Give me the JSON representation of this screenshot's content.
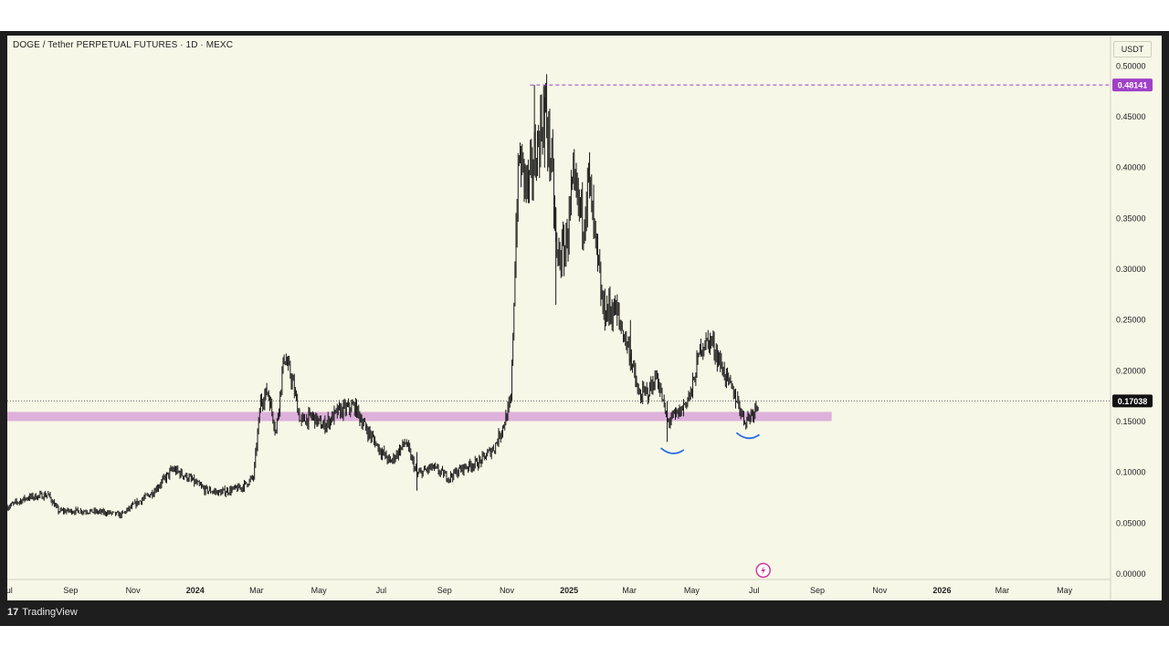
{
  "header": {
    "title": "DOGE / Tether PERPETUAL FUTURES · 1D · MEXC",
    "unit": "USDT"
  },
  "footer": {
    "logo_mark": "17",
    "brand": "TradingView"
  },
  "colors": {
    "background": "#f7f7e7",
    "candle": "#1a1a1a",
    "zone": "#d9a9d9",
    "high_marker": "#a040c8",
    "last_marker": "#111111",
    "curve_marks": "#2a6fe0",
    "lightning": "#d03a9a"
  },
  "icons": [
    "lightning-icon",
    "tradingview-logo"
  ],
  "chart_data": {
    "type": "candlestick",
    "title": "DOGE / Tether PERPETUAL FUTURES · 1D · MEXC",
    "x_range": [
      "2023-07-01",
      "2026-06-15"
    ],
    "y_range": [
      0,
      0.53
    ],
    "x_tick_labels": [
      {
        "label": "Jul",
        "date": "2023-07-01"
      },
      {
        "label": "Sep",
        "date": "2023-09-01"
      },
      {
        "label": "Nov",
        "date": "2023-11-01"
      },
      {
        "label": "2024",
        "date": "2024-01-01"
      },
      {
        "label": "Mar",
        "date": "2024-03-01"
      },
      {
        "label": "May",
        "date": "2024-05-01"
      },
      {
        "label": "Jul",
        "date": "2024-07-01"
      },
      {
        "label": "Sep",
        "date": "2024-09-01"
      },
      {
        "label": "Nov",
        "date": "2024-11-01"
      },
      {
        "label": "2025",
        "date": "2025-01-01"
      },
      {
        "label": "Mar",
        "date": "2025-03-01"
      },
      {
        "label": "May",
        "date": "2025-05-01"
      },
      {
        "label": "Jul",
        "date": "2025-07-01"
      },
      {
        "label": "Sep",
        "date": "2025-09-01"
      },
      {
        "label": "Nov",
        "date": "2025-11-01"
      },
      {
        "label": "2026",
        "date": "2026-01-01"
      },
      {
        "label": "Mar",
        "date": "2026-03-01"
      },
      {
        "label": "May",
        "date": "2026-05-01"
      }
    ],
    "y_tick_labels": [
      "0.00000",
      "0.05000",
      "0.10000",
      "0.15000",
      "0.20000",
      "0.25000",
      "0.30000",
      "0.35000",
      "0.40000",
      "0.45000",
      "0.50000"
    ],
    "y_tick_values": [
      0,
      0.05,
      0.1,
      0.15,
      0.2,
      0.25,
      0.3,
      0.35,
      0.4,
      0.45,
      0.5
    ],
    "price_path": [
      [
        "2023-07-01",
        0.066
      ],
      [
        "2023-07-20",
        0.075
      ],
      [
        "2023-08-10",
        0.078
      ],
      [
        "2023-08-20",
        0.062
      ],
      [
        "2023-09-15",
        0.062
      ],
      [
        "2023-10-10",
        0.06
      ],
      [
        "2023-10-20",
        0.058
      ],
      [
        "2023-11-05",
        0.07
      ],
      [
        "2023-11-20",
        0.08
      ],
      [
        "2023-12-10",
        0.103
      ],
      [
        "2023-12-25",
        0.095
      ],
      [
        "2024-01-10",
        0.083
      ],
      [
        "2024-01-25",
        0.08
      ],
      [
        "2024-02-15",
        0.085
      ],
      [
        "2024-02-27",
        0.095
      ],
      [
        "2024-03-05",
        0.17
      ],
      [
        "2024-03-12",
        0.18
      ],
      [
        "2024-03-20",
        0.14
      ],
      [
        "2024-03-28",
        0.215
      ],
      [
        "2024-04-05",
        0.19
      ],
      [
        "2024-04-13",
        0.15
      ],
      [
        "2024-04-25",
        0.155
      ],
      [
        "2024-05-05",
        0.145
      ],
      [
        "2024-05-20",
        0.16
      ],
      [
        "2024-06-05",
        0.165
      ],
      [
        "2024-06-15",
        0.145
      ],
      [
        "2024-06-30",
        0.122
      ],
      [
        "2024-07-10",
        0.11
      ],
      [
        "2024-07-25",
        0.13
      ],
      [
        "2024-08-05",
        0.098
      ],
      [
        "2024-08-20",
        0.105
      ],
      [
        "2024-09-05",
        0.095
      ],
      [
        "2024-09-20",
        0.105
      ],
      [
        "2024-10-05",
        0.11
      ],
      [
        "2024-10-20",
        0.125
      ],
      [
        "2024-10-30",
        0.15
      ],
      [
        "2024-11-05",
        0.17
      ],
      [
        "2024-11-10",
        0.34
      ],
      [
        "2024-11-13",
        0.41
      ],
      [
        "2024-11-22",
        0.38
      ],
      [
        "2024-12-01",
        0.42
      ],
      [
        "2024-12-08",
        0.46
      ],
      [
        "2024-12-15",
        0.4
      ],
      [
        "2024-12-20",
        0.31
      ],
      [
        "2024-12-28",
        0.32
      ],
      [
        "2025-01-05",
        0.38
      ],
      [
        "2025-01-15",
        0.35
      ],
      [
        "2025-01-20",
        0.39
      ],
      [
        "2025-01-25",
        0.34
      ],
      [
        "2025-02-03",
        0.26
      ],
      [
        "2025-02-15",
        0.26
      ],
      [
        "2025-03-01",
        0.22
      ],
      [
        "2025-03-10",
        0.175
      ],
      [
        "2025-03-20",
        0.18
      ],
      [
        "2025-03-28",
        0.195
      ],
      [
        "2025-04-07",
        0.15
      ],
      [
        "2025-04-20",
        0.16
      ],
      [
        "2025-05-01",
        0.18
      ],
      [
        "2025-05-10",
        0.225
      ],
      [
        "2025-05-20",
        0.23
      ],
      [
        "2025-05-28",
        0.21
      ],
      [
        "2025-06-05",
        0.19
      ],
      [
        "2025-06-15",
        0.17
      ],
      [
        "2025-06-22",
        0.15
      ],
      [
        "2025-06-30",
        0.16
      ],
      [
        "2025-07-05",
        0.17
      ]
    ],
    "all_time_high": {
      "value": 0.48141,
      "label": "0.48141",
      "date": "2024-12-08"
    },
    "last_price": {
      "value": 0.17038,
      "label": "0.17038",
      "date": "2025-07-05"
    },
    "support_zone": {
      "from": 0.1505,
      "to": 0.1595,
      "start": "2023-07-01",
      "end": "2025-09-15"
    },
    "annotations": [
      {
        "type": "curve",
        "date": "2025-04-12",
        "value": 0.12
      },
      {
        "type": "curve",
        "date": "2025-06-25",
        "value": 0.135
      }
    ],
    "grid": false,
    "legend": "none"
  }
}
